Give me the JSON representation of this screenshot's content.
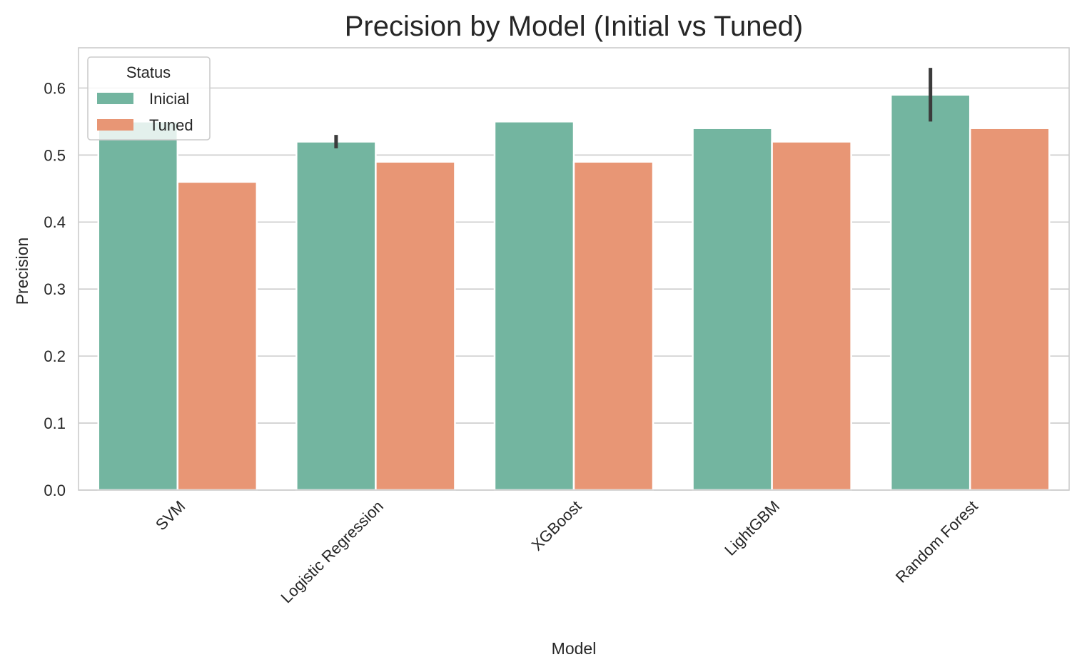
{
  "chart_data": {
    "type": "bar",
    "title": "Precision by Model (Initial vs Tuned)",
    "xlabel": "Model",
    "ylabel": "Precision",
    "ylim": [
      0,
      0.66
    ],
    "yticks": [
      0.0,
      0.1,
      0.2,
      0.3,
      0.4,
      0.5,
      0.6
    ],
    "ytick_labels": [
      "0.0",
      "0.1",
      "0.2",
      "0.3",
      "0.4",
      "0.5",
      "0.6"
    ],
    "categories": [
      "SVM",
      "Logistic Regression",
      "XGBoost",
      "LightGBM",
      "Random Forest"
    ],
    "grid": "horizontal",
    "legend": {
      "title": "Status",
      "placement": "top-left"
    },
    "series": [
      {
        "name": "Inicial",
        "color": "#73b5a0",
        "values": [
          0.55,
          0.52,
          0.55,
          0.54,
          0.59
        ],
        "error_bars": [
          null,
          [
            0.51,
            0.53
          ],
          null,
          null,
          [
            0.55,
            0.63
          ]
        ]
      },
      {
        "name": "Tuned",
        "color": "#e89675",
        "values": [
          0.46,
          0.49,
          0.49,
          0.52,
          0.54
        ],
        "error_bars": [
          null,
          null,
          null,
          null,
          null
        ]
      }
    ]
  }
}
